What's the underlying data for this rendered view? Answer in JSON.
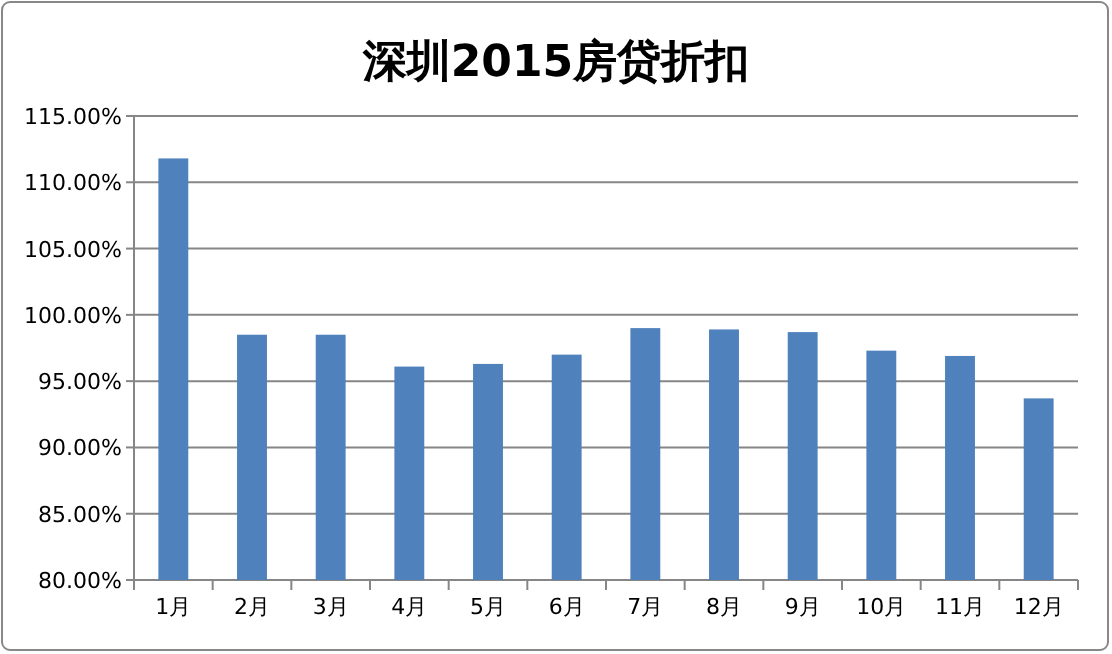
{
  "chart_data": {
    "type": "bar",
    "title": "深圳2015房贷折扣",
    "categories": [
      "1月",
      "2月",
      "3月",
      "4月",
      "5月",
      "6月",
      "7月",
      "8月",
      "9月",
      "10月",
      "11月",
      "12月"
    ],
    "series": [
      {
        "color": "#4f81bd",
        "values": [
          111.8,
          98.5,
          98.5,
          96.1,
          96.3,
          97.0,
          99.0,
          98.9,
          98.7,
          97.3,
          96.9,
          93.7
        ]
      }
    ],
    "ylim": [
      80,
      115
    ],
    "yticks": [
      {
        "value": 80,
        "label": "80.00%"
      },
      {
        "value": 85,
        "label": "85.00%"
      },
      {
        "value": 90,
        "label": "90.00%"
      },
      {
        "value": 95,
        "label": "95.00%"
      },
      {
        "value": 100,
        "label": "100.00%"
      },
      {
        "value": 105,
        "label": "105.00%"
      },
      {
        "value": 110,
        "label": "110.00%"
      },
      {
        "value": 115,
        "label": "115.00%"
      }
    ],
    "grid": "y"
  }
}
